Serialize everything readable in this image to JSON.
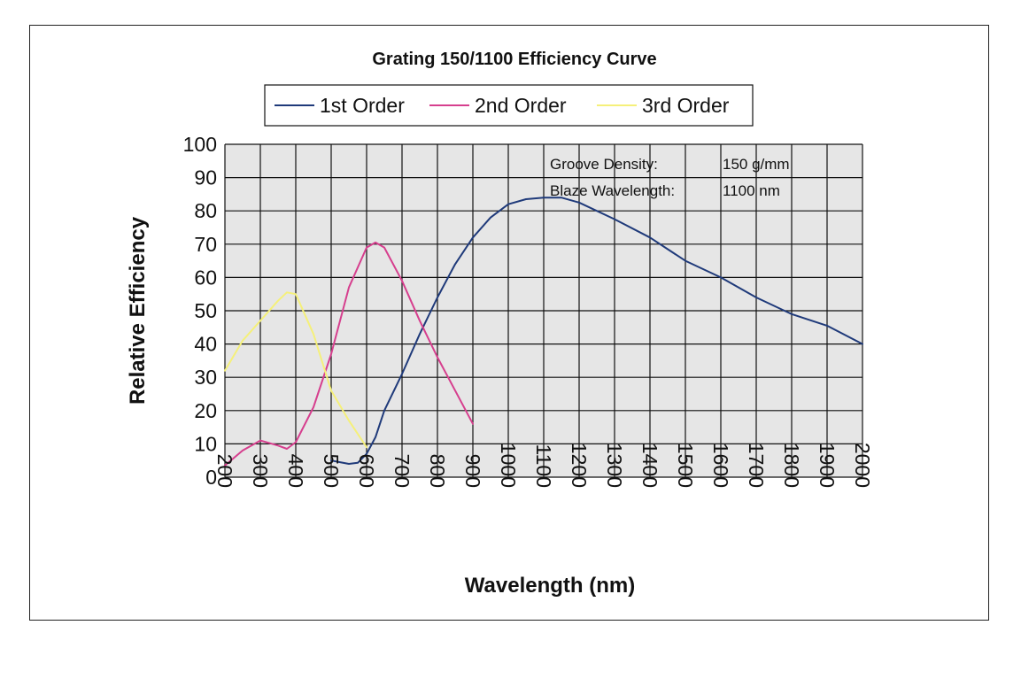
{
  "chart_data": {
    "type": "line",
    "title": "Grating 150/1100 Efficiency Curve",
    "xlabel": "Wavelength (nm)",
    "ylabel": "Relative Efficiency",
    "xlim": [
      200,
      2000
    ],
    "ylim": [
      0,
      100
    ],
    "x_ticks": [
      200,
      300,
      400,
      500,
      600,
      700,
      800,
      900,
      1000,
      1100,
      1200,
      1300,
      1400,
      1500,
      1600,
      1700,
      1800,
      1900,
      2000
    ],
    "y_ticks": [
      0,
      10,
      20,
      30,
      40,
      50,
      60,
      70,
      80,
      90,
      100
    ],
    "grid": true,
    "legend": "top",
    "plot_background": "#e6e6e6",
    "series": [
      {
        "name": "1st Order",
        "color": "#1f3a7a",
        "x": [
          500,
          525,
          550,
          575,
          600,
          625,
          650,
          700,
          750,
          800,
          850,
          900,
          950,
          1000,
          1050,
          1100,
          1150,
          1200,
          1300,
          1400,
          1500,
          1600,
          1700,
          1800,
          1900,
          2000
        ],
        "y": [
          5,
          4.5,
          4,
          4.3,
          7,
          12,
          20,
          31,
          43,
          54,
          64,
          72,
          78,
          82,
          83.5,
          84,
          84,
          82.5,
          77.5,
          72,
          65,
          60,
          54,
          49,
          45.5,
          40
        ]
      },
      {
        "name": "2nd Order",
        "color": "#d63f8e",
        "x": [
          200,
          250,
          300,
          350,
          375,
          400,
          450,
          500,
          550,
          600,
          625,
          650,
          700,
          750,
          800,
          850,
          900
        ],
        "y": [
          3.5,
          8,
          11,
          9.5,
          8.5,
          10.5,
          21,
          37,
          57,
          69,
          70.5,
          69,
          59,
          47,
          36,
          26,
          16
        ]
      },
      {
        "name": "3rd Order",
        "color": "#f5f07a",
        "x": [
          200,
          250,
          300,
          350,
          375,
          400,
          450,
          500,
          550,
          600
        ],
        "y": [
          32,
          41,
          47,
          53,
          55.5,
          55,
          43,
          26,
          17,
          9
        ]
      }
    ],
    "annotations": [
      {
        "label": "Groove Density:",
        "value": "150 g/mm"
      },
      {
        "label": "Blaze Wavelength:",
        "value": "1100 nm"
      }
    ]
  }
}
